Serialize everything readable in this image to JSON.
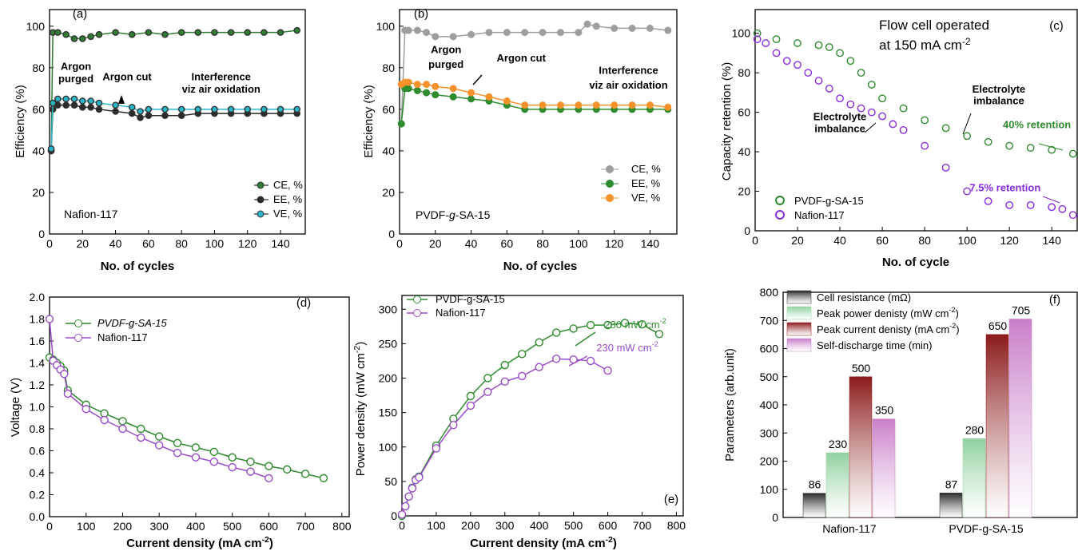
{
  "chart_data": [
    {
      "id": "a",
      "type": "scatter",
      "panel_label": "(a)",
      "xlabel": "No. of cycles",
      "ylabel": "Efficiency (%)",
      "xlim": [
        0,
        155
      ],
      "ylim": [
        0,
        108
      ],
      "xticks": [
        0,
        20,
        40,
        60,
        80,
        100,
        120,
        140
      ],
      "yticks": [
        0,
        20,
        40,
        60,
        80,
        100
      ],
      "sample_text": "Nafion-117",
      "legend_position": "bottom-right",
      "series": [
        {
          "name": "CE, %",
          "color": "#2e7d32",
          "x": [
            1,
            2,
            5,
            10,
            15,
            20,
            25,
            30,
            40,
            50,
            60,
            70,
            80,
            90,
            100,
            110,
            120,
            130,
            140,
            150
          ],
          "y": [
            40,
            97,
            97,
            96,
            94,
            94,
            95,
            96,
            97,
            96,
            97,
            96,
            97,
            97,
            97,
            97,
            97,
            97,
            97,
            98
          ]
        },
        {
          "name": "EE, %",
          "color": "#2b2b2b",
          "x": [
            1,
            2,
            5,
            10,
            15,
            20,
            25,
            30,
            40,
            50,
            55,
            60,
            70,
            80,
            90,
            100,
            110,
            120,
            130,
            140,
            150
          ],
          "y": [
            40,
            60,
            62,
            62,
            62,
            61,
            61,
            60,
            59,
            58,
            56,
            57,
            57,
            57,
            58,
            58,
            58,
            58,
            58,
            58,
            58
          ]
        },
        {
          "name": "VE, %",
          "color": "#29b6c9",
          "x": [
            1,
            2,
            5,
            10,
            15,
            20,
            25,
            30,
            40,
            50,
            55,
            60,
            70,
            80,
            90,
            100,
            110,
            120,
            130,
            140,
            150
          ],
          "y": [
            41,
            63,
            65,
            65,
            65,
            64,
            64,
            63,
            62,
            61,
            59,
            60,
            60,
            60,
            60,
            60,
            60,
            60,
            60,
            60,
            60
          ]
        }
      ],
      "annotations": [
        {
          "text": "Argon",
          "x": 16,
          "y": 79
        },
        {
          "text": "purged",
          "x": 16,
          "y": 73
        },
        {
          "text": "Argon cut",
          "x": 47,
          "y": 74
        },
        {
          "text": "Interference",
          "x": 104,
          "y": 74
        },
        {
          "text": "viz air oxidation",
          "x": 104,
          "y": 68
        }
      ]
    },
    {
      "id": "b",
      "type": "scatter",
      "panel_label": "(b)",
      "xlabel": "No. of cycles",
      "ylabel": "Efficiency (%)",
      "xlim": [
        0,
        155
      ],
      "ylim": [
        0,
        108
      ],
      "xticks": [
        0,
        20,
        40,
        60,
        80,
        100,
        120,
        140
      ],
      "yticks": [
        0,
        20,
        40,
        60,
        80,
        100
      ],
      "sample_text_italic_part": "g",
      "sample_text_parts": [
        "PVDF-",
        "g",
        "-SA-15"
      ],
      "legend_position": "center-right",
      "series": [
        {
          "name": "CE, %",
          "color": "#9e9e9e",
          "x": [
            1,
            3,
            5,
            10,
            15,
            20,
            30,
            40,
            50,
            60,
            70,
            80,
            90,
            100,
            105,
            110,
            120,
            130,
            140,
            150
          ],
          "y": [
            53,
            98,
            98,
            98,
            97,
            95,
            95,
            96,
            97,
            97,
            97,
            97,
            97,
            97,
            101,
            100,
            99,
            99,
            99,
            98
          ]
        },
        {
          "name": "EE, %",
          "color": "#2e8b2e",
          "x": [
            1,
            3,
            5,
            10,
            15,
            20,
            30,
            40,
            50,
            60,
            70,
            80,
            90,
            100,
            110,
            120,
            130,
            140,
            150
          ],
          "y": [
            53,
            70,
            70,
            69,
            68,
            67,
            66,
            65,
            64,
            62,
            60,
            60,
            60,
            60,
            60,
            60,
            60,
            60,
            60
          ]
        },
        {
          "name": "VE, %",
          "color": "#f5922b",
          "x": [
            1,
            3,
            5,
            10,
            15,
            20,
            30,
            40,
            50,
            60,
            70,
            80,
            90,
            100,
            110,
            120,
            130,
            140,
            150
          ],
          "y": [
            72,
            73,
            73,
            72,
            72,
            71,
            70,
            68,
            66,
            64,
            62,
            62,
            62,
            62,
            62,
            62,
            62,
            62,
            61
          ]
        }
      ],
      "annotations": [
        {
          "text": "Argon",
          "x": 26,
          "y": 87
        },
        {
          "text": "purged",
          "x": 26,
          "y": 80
        },
        {
          "text": "Argon cut",
          "x": 68,
          "y": 83
        },
        {
          "text": "Interference",
          "x": 128,
          "y": 77
        },
        {
          "text": "viz air oxidation",
          "x": 128,
          "y": 70
        }
      ]
    },
    {
      "id": "c",
      "type": "scatter",
      "panel_label": "(c)",
      "xlabel": "No. of cycle",
      "ylabel": "Capacity retention (%)",
      "xlim": [
        0,
        152
      ],
      "ylim": [
        0,
        112
      ],
      "xticks": [
        0,
        20,
        40,
        60,
        80,
        100,
        120,
        140
      ],
      "yticks": [
        0,
        20,
        40,
        60,
        80,
        100
      ],
      "note_line1": "Flow cell operated",
      "note_line2_pre": "at 150 mA cm",
      "note_line2_sup": "-2",
      "legend_position": "bottom-left",
      "series": [
        {
          "name": "PVDF-g-SA-15",
          "color": "#2e8b2e",
          "x": [
            1,
            10,
            20,
            30,
            35,
            40,
            45,
            50,
            55,
            60,
            70,
            80,
            90,
            100,
            110,
            120,
            130,
            140,
            150
          ],
          "y": [
            100,
            97,
            95,
            94,
            93,
            90,
            86,
            80,
            74,
            67,
            62,
            56,
            52,
            48,
            45,
            43,
            42,
            41,
            39
          ]
        },
        {
          "name": "Nafion-117",
          "color": "#8a2be2",
          "x": [
            1,
            5,
            10,
            15,
            20,
            25,
            30,
            35,
            40,
            45,
            50,
            55,
            60,
            65,
            70,
            80,
            90,
            100,
            110,
            120,
            130,
            140,
            145,
            150
          ],
          "y": [
            97,
            95,
            90,
            86,
            84,
            80,
            76,
            72,
            67,
            64,
            62,
            60,
            58,
            54,
            51,
            43,
            32,
            20,
            15,
            13,
            13,
            12,
            11,
            8
          ]
        }
      ],
      "annotations": [
        {
          "text": "Electrolyte",
          "x": 115,
          "y": 70,
          "color": "#000000"
        },
        {
          "text": "imbalance",
          "x": 115,
          "y": 64,
          "color": "#000000"
        },
        {
          "text": "40% retention",
          "x": 133,
          "y": 52,
          "color": "#2e8b2e"
        },
        {
          "text": "Electrolyte",
          "x": 40,
          "y": 56,
          "color": "#000000"
        },
        {
          "text": "imbalance",
          "x": 40,
          "y": 50,
          "color": "#000000"
        },
        {
          "text": "7.5% retention",
          "x": 118,
          "y": 20,
          "color": "#8a2be2"
        }
      ]
    },
    {
      "id": "d",
      "type": "line",
      "panel_label": "(d)",
      "xlabel_pre": "Current density (mA cm",
      "xlabel_sup": "-2",
      "xlabel_post": ")",
      "ylabel": "Voltage (V)",
      "xlim": [
        0,
        820
      ],
      "ylim": [
        0,
        2.0
      ],
      "xticks": [
        0,
        100,
        200,
        300,
        400,
        500,
        600,
        700,
        800
      ],
      "yticks": [
        0.0,
        0.2,
        0.4,
        0.6,
        0.8,
        1.0,
        1.2,
        1.4,
        1.6,
        1.8,
        2.0
      ],
      "legend_position": "top-left",
      "series": [
        {
          "name": "PVDF-g-SA-15",
          "italic": true,
          "color": "#2e8b2e",
          "x": [
            0,
            10,
            20,
            30,
            40,
            50,
            100,
            150,
            200,
            250,
            300,
            350,
            400,
            450,
            500,
            550,
            600,
            650,
            700,
            750
          ],
          "y": [
            1.45,
            1.43,
            1.4,
            1.37,
            1.33,
            1.15,
            1.02,
            0.94,
            0.87,
            0.8,
            0.73,
            0.67,
            0.63,
            0.59,
            0.54,
            0.5,
            0.46,
            0.43,
            0.39,
            0.35
          ]
        },
        {
          "name": "Nafion-117",
          "italic": false,
          "color": "#9b4dca",
          "x": [
            0,
            10,
            20,
            30,
            40,
            50,
            100,
            150,
            200,
            250,
            300,
            350,
            400,
            450,
            500,
            550,
            600
          ],
          "y": [
            1.8,
            1.42,
            1.38,
            1.34,
            1.3,
            1.12,
            0.98,
            0.88,
            0.8,
            0.72,
            0.65,
            0.58,
            0.54,
            0.5,
            0.45,
            0.41,
            0.35
          ]
        }
      ]
    },
    {
      "id": "e",
      "type": "line",
      "panel_label": "(e)",
      "xlabel_pre": "Current density (mA cm",
      "xlabel_sup": "-2",
      "xlabel_post": ")",
      "ylabel_pre": "Power density (mW cm",
      "ylabel_sup": "-2",
      "ylabel_post": ")",
      "xlim": [
        0,
        820
      ],
      "ylim": [
        0,
        320
      ],
      "xticks": [
        0,
        100,
        200,
        300,
        400,
        500,
        600,
        700,
        800
      ],
      "yticks": [
        0,
        50,
        100,
        150,
        200,
        250,
        300
      ],
      "legend_position": "top-left",
      "series": [
        {
          "name": "PVDF-g-SA-15",
          "color": "#2e8b2e",
          "x": [
            0,
            10,
            20,
            30,
            40,
            50,
            100,
            150,
            200,
            250,
            300,
            350,
            400,
            450,
            500,
            550,
            600,
            650,
            700,
            750
          ],
          "y": [
            0,
            14,
            28,
            41,
            53,
            57,
            102,
            141,
            174,
            200,
            219,
            235,
            252,
            266,
            272,
            277,
            277,
            280,
            278,
            264
          ]
        },
        {
          "name": "Nafion-117",
          "color": "#9b4dca",
          "x": [
            0,
            10,
            20,
            30,
            40,
            50,
            100,
            150,
            200,
            250,
            300,
            350,
            400,
            450,
            500,
            550,
            600
          ],
          "y": [
            2,
            14,
            28,
            40,
            52,
            56,
            98,
            132,
            160,
            180,
            195,
            203,
            216,
            228,
            227,
            225,
            211
          ]
        }
      ],
      "peak_labels": [
        {
          "value_pre": "280 mW cm",
          "value_sup": "-2",
          "color": "#2e8b2e"
        },
        {
          "value_pre": "230 mW cm",
          "value_sup": "-2",
          "color": "#9b4dca"
        }
      ]
    },
    {
      "id": "f",
      "type": "bar",
      "panel_label": "(f)",
      "ylabel": "Parameters (arb.unit)",
      "ylim": [
        0,
        800
      ],
      "yticks": [
        0,
        100,
        200,
        300,
        400,
        500,
        600,
        700,
        800
      ],
      "categories": [
        "Nafion-117",
        "PVDF-g-SA-15"
      ],
      "legend_position": "top-left",
      "series": [
        {
          "name_pre": "Cell resistance (mΩ)",
          "name_sup": "",
          "name_post": "",
          "color": "#2b2b2b",
          "values": [
            86,
            87
          ]
        },
        {
          "name_pre": "Peak power denisty (mW cm",
          "name_sup": "-2",
          "name_post": ")",
          "color": "#8fd19e",
          "values": [
            230,
            280
          ]
        },
        {
          "name_pre": "Peak current denisty (mA cm",
          "name_sup": "-2",
          "name_post": ")",
          "color": "#8b1a1a",
          "values": [
            500,
            650
          ]
        },
        {
          "name_pre": "Self-discharge time (min)",
          "name_sup": "",
          "name_post": "",
          "color": "#c97fc9",
          "values": [
            350,
            705
          ]
        }
      ],
      "value_labels": [
        [
          "86",
          "230",
          "500",
          "350"
        ],
        [
          "87",
          "280",
          "650",
          "705"
        ]
      ]
    }
  ]
}
